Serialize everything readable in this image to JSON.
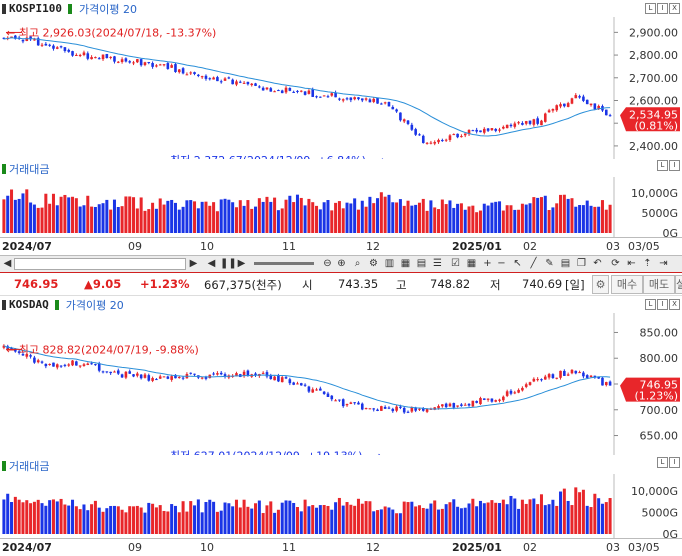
{
  "panels": [
    {
      "id": "kospi",
      "name": "KOSPI100",
      "ma_label": "가격이평 20",
      "high_label": "최고  2,926.03(2024/07/18, -13.37%)",
      "low_label": "최저  2,372.67(2024/12/09, +6.84%)",
      "price_ticks": [
        "2,900.00",
        "2,800.00",
        "2,700.00",
        "2,600.00",
        "2,500.00",
        "2,400.00"
      ],
      "current_price": "2,534.95",
      "current_change": "(0.81%)",
      "volume_label": "거래대금",
      "volume_ticks": [
        "10,000G",
        "5000G",
        "0G"
      ]
    },
    {
      "id": "kosdaq",
      "name": "KOSDAQ",
      "ma_label": "가격이평 20",
      "high_label": "최고  828.82(2024/07/19, -9.88%)",
      "low_label": "최저  627.01(2024/12/09, +19.13%)",
      "price_ticks": [
        "850.00",
        "800.00",
        "750.00",
        "700.00",
        "650.00"
      ],
      "current_price": "746.95",
      "current_change": "(1.23%)",
      "volume_label": "거래대금",
      "volume_ticks": [
        "10,000G",
        "5000G",
        "0G"
      ]
    }
  ],
  "date_axis": [
    "2024/07",
    "09",
    "10",
    "11",
    "12",
    "2025/01",
    "02",
    "03",
    "03/05"
  ],
  "quote": {
    "price": "746.95",
    "change": "▲9.05",
    "pct": "+1.23%",
    "volume": "667,375(천주)",
    "open_label": "시",
    "open": "743.35",
    "high_label": "고",
    "high": "748.82",
    "low_label": "저",
    "low": "740.69",
    "period": "[일]",
    "buy_label": "매수",
    "sell_label": "매도",
    "extra_label": "설"
  },
  "colors": {
    "up": "#e8262a",
    "down": "#1a34e6",
    "ma": "#2a8fd8"
  },
  "chart_data": [
    {
      "type": "candlestick",
      "title": "KOSPI100",
      "series": [
        {
          "name": "가격이평 20"
        }
      ],
      "points": 160,
      "x_range": [
        "2024/07",
        "2025/03/05"
      ],
      "ylim": [
        2360,
        2950
      ],
      "high": 2926.03,
      "low": 2372.67,
      "last": 2534.95,
      "x": [
        0,
        10,
        20,
        30,
        40,
        50,
        60,
        70,
        80,
        90,
        100,
        110,
        120,
        130,
        140,
        150,
        159
      ],
      "close": [
        2880,
        2850,
        2800,
        2780,
        2760,
        2720,
        2680,
        2650,
        2630,
        2610,
        2590,
        2420,
        2450,
        2480,
        2510,
        2620,
        2534.95
      ],
      "volume": [
        10000,
        8000,
        7800,
        7500,
        7200,
        6800,
        7000,
        7500,
        7800,
        7200,
        8400,
        7000,
        6500,
        7200,
        7400,
        8000,
        7000
      ]
    },
    {
      "type": "candlestick",
      "title": "KOSDAQ",
      "series": [
        {
          "name": "가격이평 20"
        }
      ],
      "points": 160,
      "x_range": [
        "2024/07",
        "2025/03/05"
      ],
      "ylim": [
        620,
        880
      ],
      "high": 828.82,
      "low": 627.01,
      "last": 746.95,
      "x": [
        0,
        10,
        20,
        30,
        40,
        50,
        60,
        70,
        80,
        90,
        100,
        110,
        120,
        130,
        140,
        150,
        159
      ],
      "close": [
        820,
        790,
        790,
        770,
        760,
        765,
        770,
        765,
        740,
        710,
        700,
        700,
        710,
        725,
        760,
        775,
        746.95
      ],
      "volume": [
        8000,
        7000,
        6500,
        6000,
        6200,
        6600,
        6500,
        6400,
        6800,
        7000,
        6500,
        6000,
        6800,
        7200,
        8000,
        8800,
        7000
      ]
    }
  ]
}
